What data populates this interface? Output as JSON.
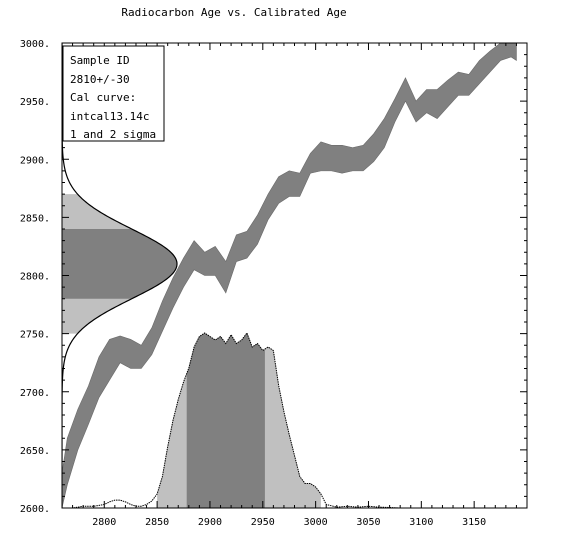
{
  "chart_data": {
    "type": "area",
    "title": "Radiocarbon Age vs. Calibrated Age",
    "xlabel": "",
    "ylabel": "",
    "xlim": [
      2760,
      3200
    ],
    "ylim": [
      2600,
      3000
    ],
    "x_ticks": [
      2800,
      2850,
      2900,
      2950,
      3000,
      3050,
      3100,
      3150
    ],
    "y_ticks": [
      2600,
      2650,
      2700,
      2750,
      2800,
      2850,
      2900,
      2950,
      3000
    ],
    "x_tick_labels": [
      "2800",
      "2850",
      "2900",
      "2950",
      "3000",
      "3050",
      "3100",
      "3150"
    ],
    "y_tick_labels": [
      "2600.",
      "2650.",
      "2700.",
      "2750.",
      "2800.",
      "2850.",
      "2900.",
      "2950.",
      "3000."
    ],
    "grid": false,
    "legend": {
      "placement": "top-left",
      "lines": [
        "Sample ID",
        "2810+/-30",
        "Cal curve:",
        "intcal13.14c",
        "1 and 2 sigma"
      ]
    },
    "radiocarbon_date": {
      "mean": 2810,
      "sigma": 30,
      "one_sigma": [
        2780,
        2840
      ],
      "two_sigma": [
        2750,
        2870
      ]
    },
    "calibration_curve": {
      "name": "intcal13.14c",
      "x": [
        2760,
        2765,
        2775,
        2785,
        2795,
        2805,
        2815,
        2825,
        2835,
        2845,
        2855,
        2865,
        2875,
        2885,
        2895,
        2905,
        2915,
        2925,
        2935,
        2945,
        2955,
        2965,
        2975,
        2985,
        2995,
        3005,
        3015,
        3025,
        3035,
        3045,
        3055,
        3065,
        3075,
        3085,
        3095,
        3105,
        3115,
        3125,
        3135,
        3145,
        3155,
        3165,
        3175,
        3185,
        3190
      ],
      "upper": [
        2630,
        2660,
        2685,
        2705,
        2730,
        2745,
        2748,
        2745,
        2740,
        2755,
        2778,
        2798,
        2815,
        2830,
        2820,
        2825,
        2812,
        2835,
        2838,
        2852,
        2870,
        2885,
        2890,
        2888,
        2905,
        2915,
        2912,
        2912,
        2910,
        2912,
        2922,
        2935,
        2952,
        2970,
        2950,
        2960,
        2960,
        2968,
        2975,
        2973,
        2985,
        2993,
        3000,
        3003,
        3000
      ],
      "lower": [
        2600,
        2620,
        2650,
        2672,
        2695,
        2710,
        2725,
        2720,
        2720,
        2732,
        2752,
        2772,
        2790,
        2805,
        2800,
        2800,
        2785,
        2812,
        2815,
        2827,
        2848,
        2862,
        2868,
        2868,
        2888,
        2890,
        2890,
        2888,
        2890,
        2890,
        2898,
        2910,
        2932,
        2950,
        2932,
        2940,
        2935,
        2945,
        2955,
        2955,
        2965,
        2975,
        2985,
        2988,
        2985
      ]
    },
    "probability_distribution": {
      "x": [
        2760,
        2770,
        2780,
        2790,
        2800,
        2805,
        2810,
        2815,
        2820,
        2825,
        2830,
        2835,
        2840,
        2845,
        2850,
        2855,
        2860,
        2865,
        2870,
        2875,
        2880,
        2885,
        2890,
        2895,
        2900,
        2905,
        2910,
        2915,
        2920,
        2925,
        2930,
        2935,
        2940,
        2945,
        2950,
        2955,
        2960,
        2965,
        2970,
        2975,
        2980,
        2985,
        2990,
        2995,
        3000,
        3005,
        3010,
        3020,
        3030,
        3040,
        3050,
        3060,
        3070,
        3080,
        3090
      ],
      "density": [
        0,
        0,
        0.01,
        0.01,
        0.02,
        0.035,
        0.045,
        0.045,
        0.035,
        0.02,
        0.01,
        0.01,
        0.02,
        0.04,
        0.08,
        0.18,
        0.35,
        0.5,
        0.62,
        0.72,
        0.8,
        0.92,
        0.98,
        1.0,
        0.98,
        0.96,
        0.98,
        0.94,
        0.99,
        0.94,
        0.96,
        1.0,
        0.92,
        0.94,
        0.9,
        0.92,
        0.9,
        0.7,
        0.55,
        0.42,
        0.3,
        0.18,
        0.14,
        0.14,
        0.12,
        0.08,
        0.02,
        0.005,
        0.01,
        0.005,
        0.01,
        0.005,
        0.003,
        0,
        0
      ],
      "two_sigma_range": [
        2850,
        3005
      ],
      "one_sigma_range": [
        2878,
        2952
      ]
    },
    "colors": {
      "curve": "#808080",
      "one_sigma": "#808080",
      "two_sigma": "#c0c0c0",
      "outline": "#000000"
    }
  }
}
